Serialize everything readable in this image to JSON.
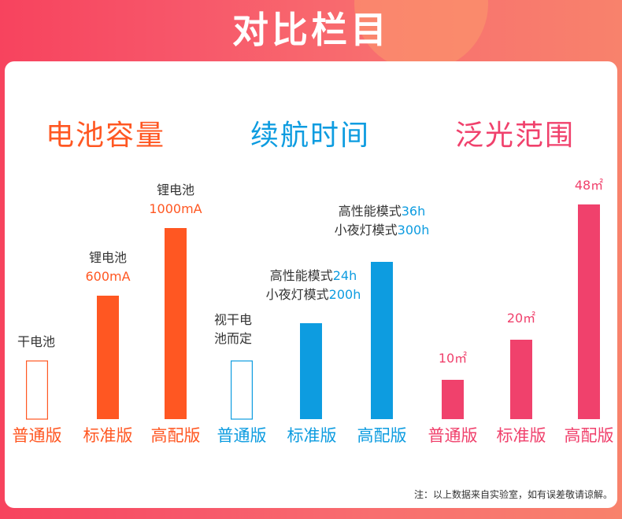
{
  "page_title": "对比栏目",
  "colors": {
    "battery": "#ff5722",
    "endurance": "#0d9ce0",
    "flood": "#f0416c"
  },
  "chart_data": [
    {
      "type": "bar",
      "title": "电池容量",
      "categories": [
        "普通版",
        "标准版",
        "高配版"
      ],
      "values": [
        null,
        600,
        1000
      ],
      "unit": "mA",
      "bar_labels": [
        {
          "lines": [
            "干电池"
          ]
        },
        {
          "lines": [
            "锂电池"
          ],
          "value": "600mA"
        },
        {
          "lines": [
            "锂电池"
          ],
          "value": "1000mA"
        }
      ],
      "outlined_bar": "普通版"
    },
    {
      "type": "bar",
      "title": "续航时间",
      "categories": [
        "普通版",
        "标准版",
        "高配版"
      ],
      "series": [
        {
          "name": "高性能模式",
          "values": [
            null,
            24,
            36
          ]
        },
        {
          "name": "小夜灯模式",
          "values": [
            null,
            200,
            300
          ]
        }
      ],
      "unit": "h",
      "bar_labels": [
        {
          "lines": [
            "视干电",
            "池而定"
          ]
        },
        {
          "lines": [
            {
              "text": "高性能模式",
              "value": "24h"
            },
            {
              "text": "小夜灯模式",
              "value": "200h"
            }
          ]
        },
        {
          "lines": [
            {
              "text": "高性能模式",
              "value": "36h"
            },
            {
              "text": "小夜灯模式",
              "value": "300h"
            }
          ]
        }
      ],
      "outlined_bar": "普通版"
    },
    {
      "type": "bar",
      "title": "泛光范围",
      "categories": [
        "普通版",
        "标准版",
        "高配版"
      ],
      "values": [
        10,
        20,
        48
      ],
      "unit": "m²",
      "bar_labels": [
        {
          "value": "10㎡"
        },
        {
          "value": "20㎡"
        },
        {
          "value": "48㎡"
        }
      ]
    }
  ],
  "footnote": "注：以上数据来自实验室，如有误差敬请谅解。"
}
